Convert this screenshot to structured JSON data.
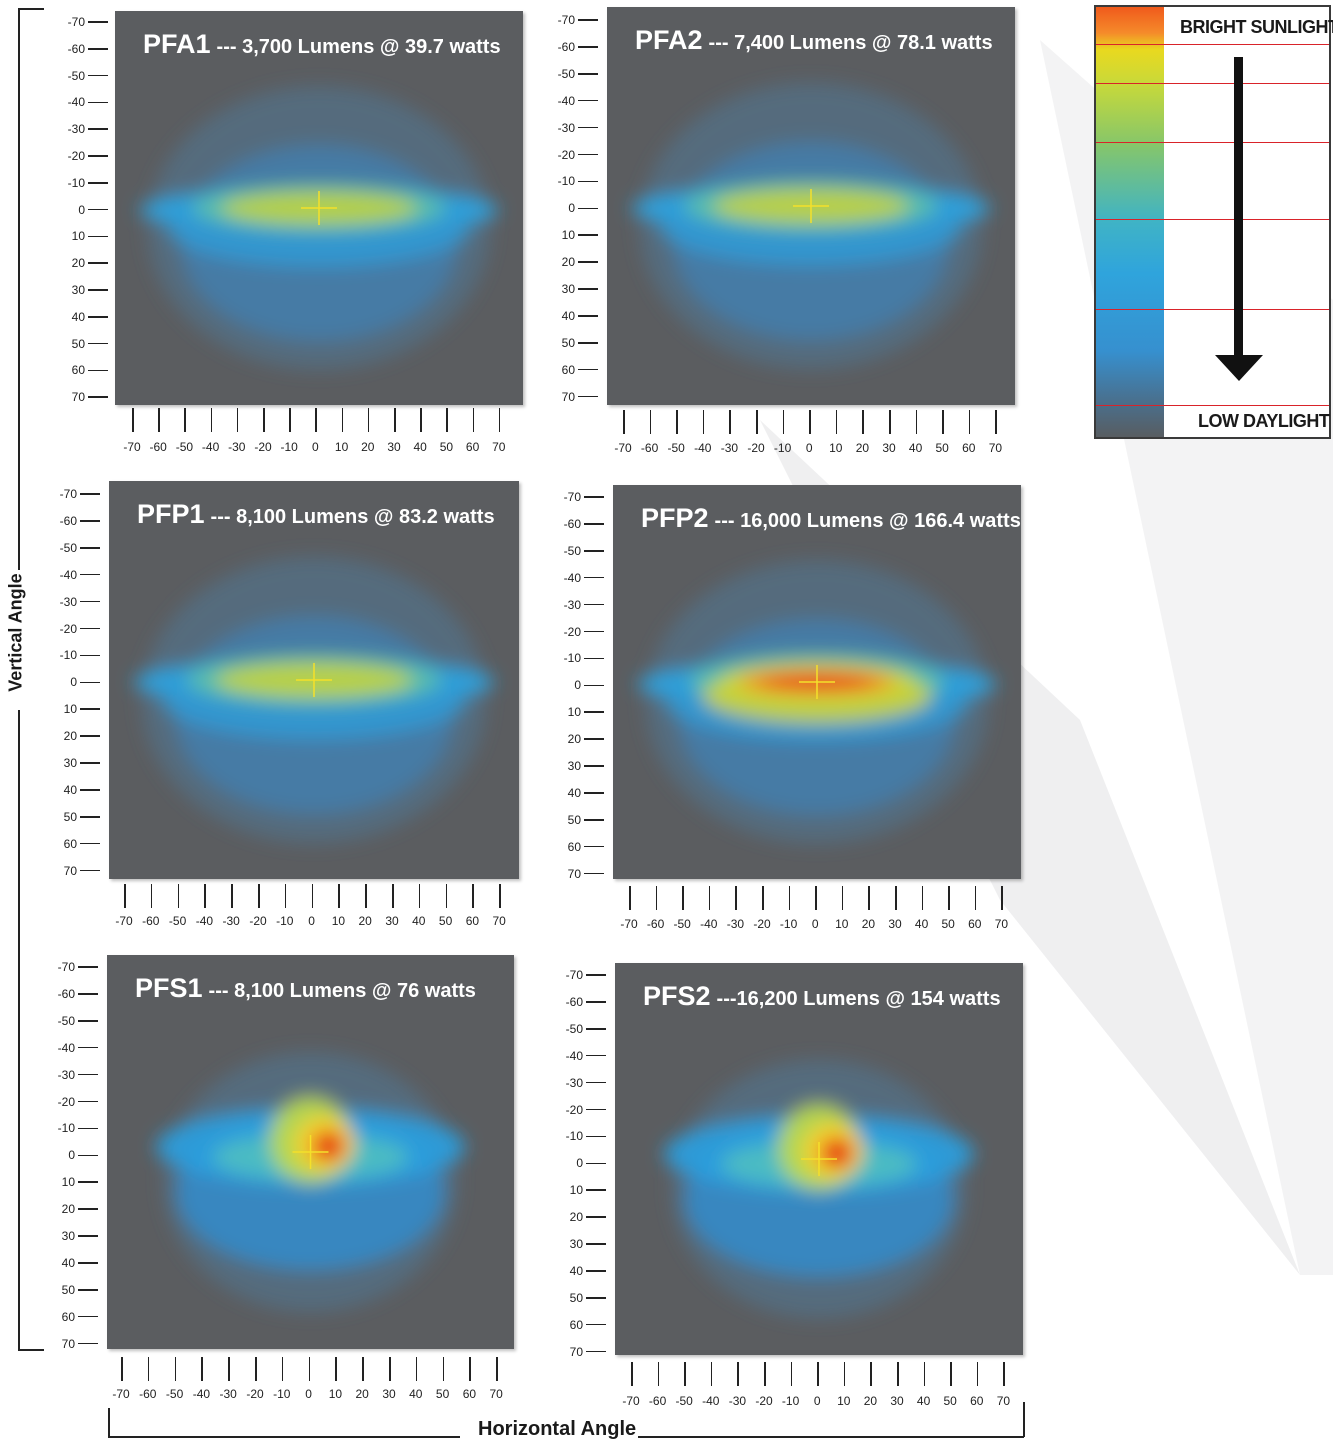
{
  "legend": {
    "top_label": "BRIGHT SUNLIGHT",
    "bottom_label": "LOW DAYLIGHT",
    "colors": [
      "#f05a1c",
      "#e9d91f",
      "#86c66a",
      "#3fb3c6",
      "#3690cf",
      "#585d61"
    ]
  },
  "axes": {
    "vertical_title": "Vertical Angle",
    "horizontal_title": "Horizontal Angle"
  },
  "chart_data": [
    {
      "type": "heatmap",
      "name": "PFA1",
      "spec": "--- 3,700 Lumens @ 39.7 watts",
      "x_ticks": [
        -70,
        -60,
        -50,
        -40,
        -30,
        -20,
        -10,
        0,
        10,
        20,
        30,
        40,
        50,
        60,
        70
      ],
      "y_ticks": [
        -70,
        -60,
        -50,
        -40,
        -30,
        -20,
        -10,
        0,
        10,
        20,
        30,
        40,
        50,
        60,
        70
      ],
      "xlim": [
        -70,
        70
      ],
      "ylim": [
        -70,
        70
      ],
      "peak_intensity": 0.55,
      "beam": "flood"
    },
    {
      "type": "heatmap",
      "name": "PFA2",
      "spec": "--- 7,400 Lumens @ 78.1 watts",
      "x_ticks": [
        -70,
        -60,
        -50,
        -40,
        -30,
        -20,
        -10,
        0,
        10,
        20,
        30,
        40,
        50,
        60,
        70
      ],
      "y_ticks": [
        -70,
        -60,
        -50,
        -40,
        -30,
        -20,
        -10,
        0,
        10,
        20,
        30,
        40,
        50,
        60,
        70
      ],
      "xlim": [
        -70,
        70
      ],
      "ylim": [
        -70,
        70
      ],
      "peak_intensity": 0.65,
      "beam": "flood"
    },
    {
      "type": "heatmap",
      "name": "PFP1",
      "spec": "--- 8,100 Lumens @ 83.2 watts",
      "x_ticks": [
        -70,
        -60,
        -50,
        -40,
        -30,
        -20,
        -10,
        0,
        10,
        20,
        30,
        40,
        50,
        60,
        70
      ],
      "y_ticks": [
        -70,
        -60,
        -50,
        -40,
        -30,
        -20,
        -10,
        0,
        10,
        20,
        30,
        40,
        50,
        60,
        70
      ],
      "xlim": [
        -70,
        70
      ],
      "ylim": [
        -70,
        70
      ],
      "peak_intensity": 0.68,
      "beam": "flood"
    },
    {
      "type": "heatmap",
      "name": "PFP2",
      "spec": "--- 16,000 Lumens @ 166.4 watts",
      "x_ticks": [
        -70,
        -60,
        -50,
        -40,
        -30,
        -20,
        -10,
        0,
        10,
        20,
        30,
        40,
        50,
        60,
        70
      ],
      "y_ticks": [
        -70,
        -60,
        -50,
        -40,
        -30,
        -20,
        -10,
        0,
        10,
        20,
        30,
        40,
        50,
        60,
        70
      ],
      "xlim": [
        -70,
        70
      ],
      "ylim": [
        -70,
        70
      ],
      "peak_intensity": 1.0,
      "beam": "flood"
    },
    {
      "type": "heatmap",
      "name": "PFS1",
      "spec": "--- 8,100 Lumens @ 76 watts",
      "x_ticks": [
        -70,
        -60,
        -50,
        -40,
        -30,
        -20,
        -10,
        0,
        10,
        20,
        30,
        40,
        50,
        60,
        70
      ],
      "y_ticks": [
        -70,
        -60,
        -50,
        -40,
        -30,
        -20,
        -10,
        0,
        10,
        20,
        30,
        40,
        50,
        60,
        70
      ],
      "xlim": [
        -70,
        70
      ],
      "ylim": [
        -70,
        70
      ],
      "peak_intensity": 1.0,
      "beam": "spot"
    },
    {
      "type": "heatmap",
      "name": "PFS2",
      "spec": "---16,200 Lumens @ 154 watts",
      "x_ticks": [
        -70,
        -60,
        -50,
        -40,
        -30,
        -20,
        -10,
        0,
        10,
        20,
        30,
        40,
        50,
        60,
        70
      ],
      "y_ticks": [
        -70,
        -60,
        -50,
        -40,
        -30,
        -20,
        -10,
        0,
        10,
        20,
        30,
        40,
        50,
        60,
        70
      ],
      "xlim": [
        -70,
        70
      ],
      "ylim": [
        -70,
        70
      ],
      "peak_intensity": 1.0,
      "beam": "spot"
    }
  ]
}
